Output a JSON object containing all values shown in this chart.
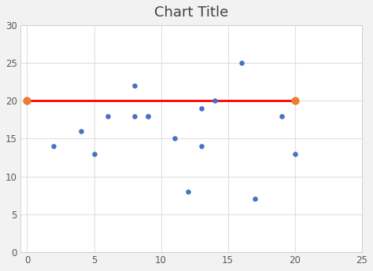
{
  "title": "Chart Title",
  "scatter_x": [
    2,
    4,
    5,
    6,
    8,
    8,
    9,
    9,
    11,
    12,
    13,
    13,
    14,
    16,
    17,
    19,
    20
  ],
  "scatter_y": [
    14,
    16,
    13,
    18,
    22,
    18,
    18,
    18,
    15,
    8,
    14,
    19,
    20,
    25,
    7,
    18,
    13
  ],
  "scatter_color": "#4472C4",
  "scatter_size": 22,
  "line_x": [
    0,
    20
  ],
  "line_y": [
    20,
    20
  ],
  "line_color": "#FF0000",
  "line_width": 2.0,
  "endpoint_color": "#ED7D31",
  "endpoint_size": 55,
  "xlim": [
    -0.5,
    25
  ],
  "ylim": [
    0,
    30
  ],
  "xticks": [
    0,
    5,
    10,
    15,
    20,
    25
  ],
  "yticks": [
    0,
    5,
    10,
    15,
    20,
    25,
    30
  ],
  "title_fontsize": 13,
  "plot_bg_color": "#FFFFFF",
  "fig_bg_color": "#F2F2F2",
  "grid_color": "#E0E0E0",
  "spine_color": "#CCCCCC",
  "tick_color": "#595959",
  "title_color": "#404040"
}
